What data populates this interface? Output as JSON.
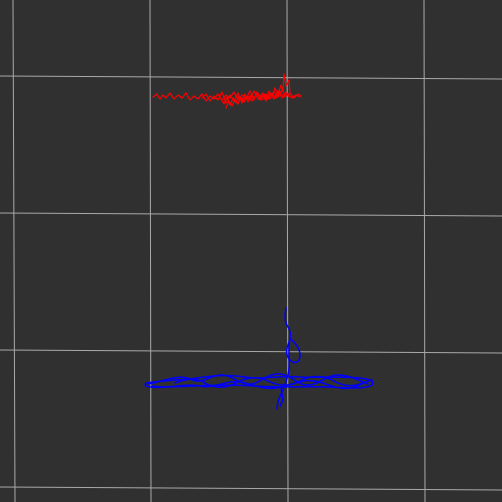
{
  "view": {
    "background_color": "#303030",
    "grid": {
      "visible": true,
      "color": "#a9a9a9"
    },
    "tracks": [
      {
        "id": "red-track",
        "color": "#ff0000",
        "style": "noisy horizontal trajectory"
      },
      {
        "id": "blue-track",
        "color": "#0000ff",
        "style": "looping horizontal trajectory with vertical excursion"
      }
    ]
  }
}
